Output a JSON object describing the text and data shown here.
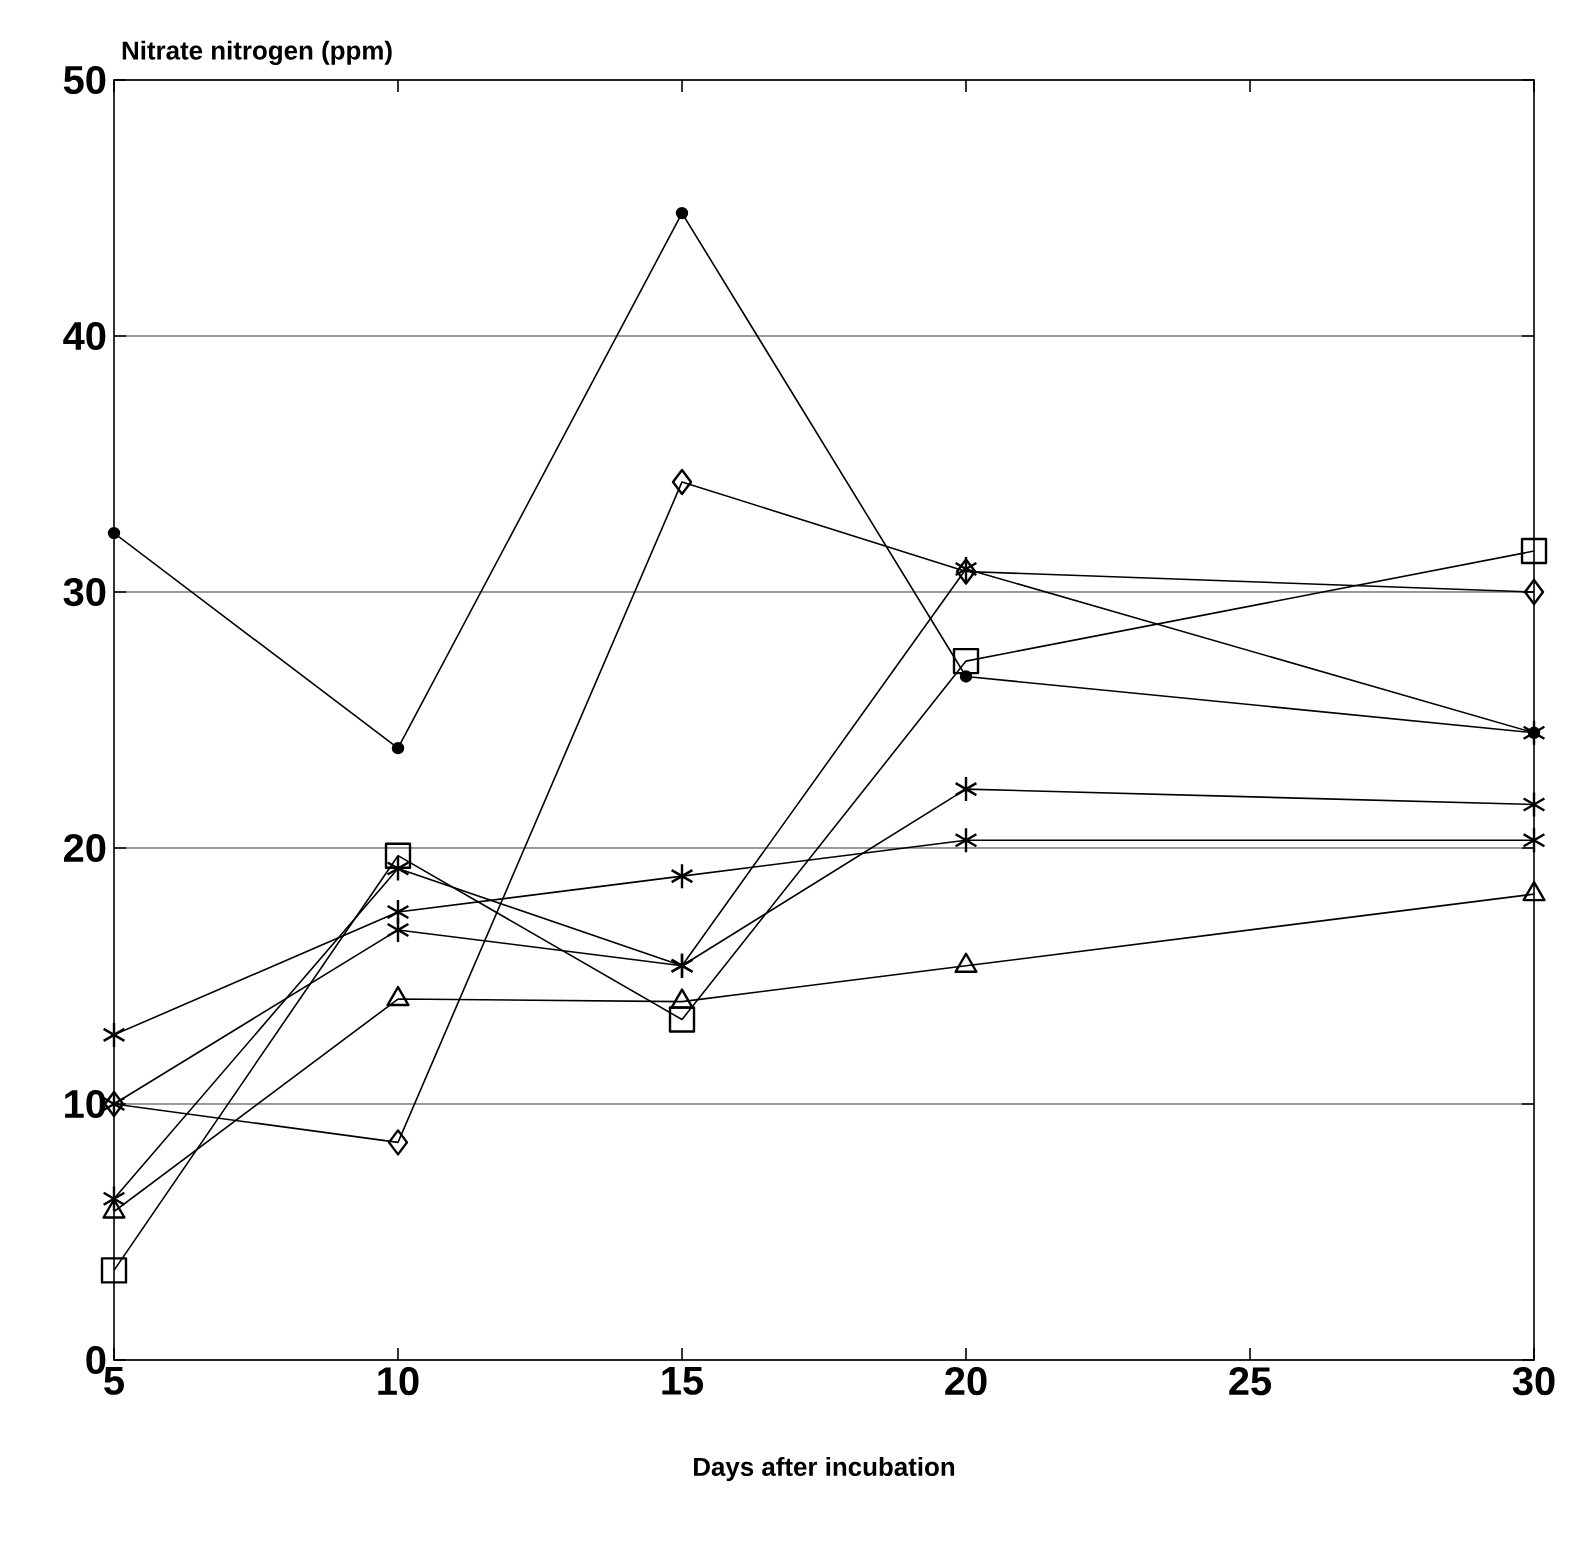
{
  "chart_data": {
    "type": "line",
    "xlabel": "Days after incubation",
    "ylabel": "Nitrate nitrogen (ppm)",
    "x": [
      5,
      10,
      15,
      20,
      30
    ],
    "xlim": [
      5,
      30
    ],
    "ylim": [
      0,
      50
    ],
    "xticks": [
      5,
      10,
      15,
      20,
      25,
      30
    ],
    "yticks": [
      0,
      10,
      20,
      30,
      40,
      50
    ],
    "grid": "y",
    "series": [
      {
        "color": "#000000",
        "marker": "circle",
        "values": [
          32.3,
          23.9,
          44.8,
          26.7,
          24.5
        ]
      },
      {
        "color": "#000000",
        "marker": "diamond",
        "values": [
          10,
          8.5,
          34.3,
          30.8,
          30
        ]
      },
      {
        "color": "#000000",
        "marker": "square",
        "values": [
          3.5,
          19.7,
          13.3,
          27.3,
          31.6
        ]
      },
      {
        "color": "#000000",
        "marker": "cross",
        "values": [
          6.3,
          19.2,
          15.4,
          30.9,
          24.5
        ]
      },
      {
        "color": "#000000",
        "marker": "cross",
        "values": [
          12.7,
          17.5,
          18.9,
          20.3,
          20.3
        ]
      },
      {
        "color": "#000000",
        "marker": "cross",
        "values": [
          10,
          16.8,
          15.4,
          22.3,
          21.7
        ]
      },
      {
        "color": "#000000",
        "marker": "triangle",
        "values": [
          5.8,
          14.1,
          14,
          15.4,
          18.2
        ]
      }
    ]
  }
}
